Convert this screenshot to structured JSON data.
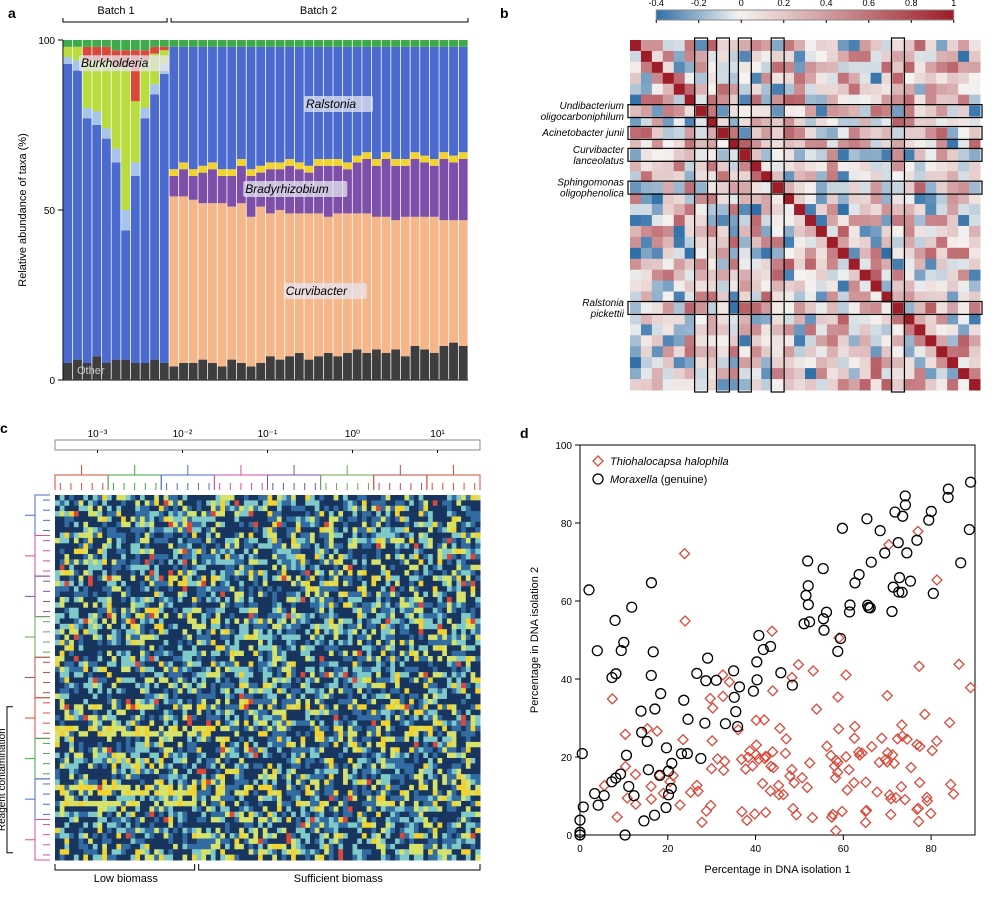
{
  "panels": {
    "a": "a",
    "b": "b",
    "c": "c",
    "d": "d"
  },
  "panel_a": {
    "type": "stacked-bar",
    "y_label": "Relative abundance of taxa (%)",
    "y_ticks": [
      0,
      50,
      100
    ],
    "batches": {
      "b1": "Batch 1",
      "b2": "Batch 2"
    },
    "taxa_labels": {
      "burkholderia": "Burkholderia",
      "ralstonia": "Ralstonia",
      "bradyrhizobium": "Bradyrhizobium",
      "curvibacter": "Curvibacter",
      "other": "Other"
    },
    "colors": {
      "other": "#3e3e3e",
      "curvibacter": "#f5b78a",
      "bradyrhizobium": "#7d4fa8",
      "ralstonia": "#4b6bd0",
      "burkholderia": "#b9dc3f",
      "red_taxa": "#d9483a",
      "green_taxa": "#3eaa49",
      "lightblue_taxa": "#a7c4ea",
      "yellow_taxa": "#f2d22e"
    },
    "n_batch1": 11,
    "n_batch2": 31,
    "batch1_stack": [
      {
        "other": 5,
        "ralstonia": 88,
        "lightblue": 2,
        "burkholderia": 3,
        "green": 2
      },
      {
        "other": 6,
        "ralstonia": 85,
        "lightblue": 3,
        "burkholderia": 4,
        "green": 2
      },
      {
        "other": 5,
        "ralstonia": 72,
        "lightblue": 3,
        "burkholderia": 14,
        "green": 2,
        "red": 4
      },
      {
        "other": 7,
        "ralstonia": 68,
        "lightblue": 4,
        "burkholderia": 15,
        "green": 2,
        "red": 4
      },
      {
        "other": 5,
        "ralstonia": 66,
        "lightblue": 3,
        "burkholderia": 20,
        "green": 2,
        "red": 4
      },
      {
        "other": 6,
        "ralstonia": 58,
        "lightblue": 4,
        "burkholderia": 24,
        "green": 3,
        "red": 5
      },
      {
        "other": 6,
        "ralstonia": 38,
        "lightblue": 6,
        "burkholderia": 42,
        "green": 3,
        "red": 5
      },
      {
        "other": 5,
        "ralstonia": 55,
        "lightblue": 4,
        "burkholderia": 18,
        "green": 3,
        "red": 15
      },
      {
        "other": 5,
        "ralstonia": 72,
        "lightblue": 3,
        "burkholderia": 14,
        "green": 3,
        "red": 3
      },
      {
        "other": 6,
        "ralstonia": 78,
        "lightblue": 3,
        "burkholderia": 9,
        "green": 2,
        "red": 2
      },
      {
        "other": 5,
        "ralstonia": 85,
        "lightblue": 3,
        "burkholderia": 4,
        "green": 2,
        "red": 1
      }
    ],
    "batch2_stack": [
      {
        "other": 4,
        "curvibacter": 50,
        "bradyrhizobium": 6,
        "yellow": 2,
        "ralstonia": 36,
        "green": 2
      },
      {
        "other": 5,
        "curvibacter": 49,
        "bradyrhizobium": 8,
        "yellow": 2,
        "ralstonia": 34,
        "green": 2
      },
      {
        "other": 5,
        "curvibacter": 48,
        "bradyrhizobium": 7,
        "yellow": 2,
        "ralstonia": 36,
        "green": 2
      },
      {
        "other": 6,
        "curvibacter": 46,
        "bradyrhizobium": 9,
        "yellow": 2,
        "ralstonia": 35,
        "green": 2
      },
      {
        "other": 5,
        "curvibacter": 47,
        "bradyrhizobium": 10,
        "yellow": 2,
        "ralstonia": 34,
        "green": 2
      },
      {
        "other": 4,
        "curvibacter": 48,
        "bradyrhizobium": 8,
        "yellow": 2,
        "ralstonia": 36,
        "green": 2
      },
      {
        "other": 6,
        "curvibacter": 45,
        "bradyrhizobium": 9,
        "yellow": 2,
        "ralstonia": 36,
        "green": 2
      },
      {
        "other": 5,
        "curvibacter": 47,
        "bradyrhizobium": 11,
        "yellow": 2,
        "ralstonia": 33,
        "green": 2
      },
      {
        "other": 4,
        "curvibacter": 44,
        "bradyrhizobium": 12,
        "yellow": 2,
        "ralstonia": 36,
        "green": 2
      },
      {
        "other": 5,
        "curvibacter": 46,
        "bradyrhizobium": 10,
        "yellow": 2,
        "ralstonia": 35,
        "green": 2
      },
      {
        "other": 7,
        "curvibacter": 42,
        "bradyrhizobium": 13,
        "yellow": 2,
        "ralstonia": 34,
        "green": 2
      },
      {
        "other": 6,
        "curvibacter": 44,
        "bradyrhizobium": 12,
        "yellow": 2,
        "ralstonia": 34,
        "green": 2
      },
      {
        "other": 7,
        "curvibacter": 42,
        "bradyrhizobium": 14,
        "yellow": 2,
        "ralstonia": 33,
        "green": 2
      },
      {
        "other": 8,
        "curvibacter": 41,
        "bradyrhizobium": 13,
        "yellow": 2,
        "ralstonia": 34,
        "green": 2
      },
      {
        "other": 6,
        "curvibacter": 43,
        "bradyrhizobium": 12,
        "yellow": 2,
        "ralstonia": 35,
        "green": 2
      },
      {
        "other": 7,
        "curvibacter": 42,
        "bradyrhizobium": 14,
        "yellow": 2,
        "ralstonia": 33,
        "green": 2
      },
      {
        "other": 8,
        "curvibacter": 40,
        "bradyrhizobium": 15,
        "yellow": 2,
        "ralstonia": 33,
        "green": 2
      },
      {
        "other": 7,
        "curvibacter": 42,
        "bradyrhizobium": 14,
        "yellow": 2,
        "ralstonia": 33,
        "green": 2
      },
      {
        "other": 8,
        "curvibacter": 41,
        "bradyrhizobium": 13,
        "yellow": 2,
        "ralstonia": 34,
        "green": 2
      },
      {
        "other": 9,
        "curvibacter": 40,
        "bradyrhizobium": 15,
        "yellow": 2,
        "ralstonia": 32,
        "green": 2
      },
      {
        "other": 8,
        "curvibacter": 41,
        "bradyrhizobium": 16,
        "yellow": 2,
        "ralstonia": 31,
        "green": 2
      },
      {
        "other": 9,
        "curvibacter": 39,
        "bradyrhizobium": 15,
        "yellow": 2,
        "ralstonia": 33,
        "green": 2
      },
      {
        "other": 8,
        "curvibacter": 40,
        "bradyrhizobium": 17,
        "yellow": 2,
        "ralstonia": 31,
        "green": 2
      },
      {
        "other": 9,
        "curvibacter": 38,
        "bradyrhizobium": 16,
        "yellow": 2,
        "ralstonia": 33,
        "green": 2
      },
      {
        "other": 7,
        "curvibacter": 41,
        "bradyrhizobium": 15,
        "yellow": 2,
        "ralstonia": 33,
        "green": 2
      },
      {
        "other": 10,
        "curvibacter": 38,
        "bradyrhizobium": 17,
        "yellow": 2,
        "ralstonia": 31,
        "green": 2
      },
      {
        "other": 9,
        "curvibacter": 39,
        "bradyrhizobium": 16,
        "yellow": 2,
        "ralstonia": 32,
        "green": 2
      },
      {
        "other": 8,
        "curvibacter": 40,
        "bradyrhizobium": 15,
        "yellow": 2,
        "ralstonia": 33,
        "green": 2
      },
      {
        "other": 10,
        "curvibacter": 37,
        "bradyrhizobium": 18,
        "yellow": 2,
        "ralstonia": 31,
        "green": 2
      },
      {
        "other": 11,
        "curvibacter": 36,
        "bradyrhizobium": 17,
        "yellow": 2,
        "ralstonia": 32,
        "green": 2
      },
      {
        "other": 10,
        "curvibacter": 37,
        "bradyrhizobium": 18,
        "yellow": 2,
        "ralstonia": 31,
        "green": 2
      }
    ],
    "plot_bg": "#ffffff",
    "axis_color": "#000000",
    "label_fontsize": 11
  },
  "panel_b": {
    "type": "heatmap",
    "color_scale": {
      "min": -0.4,
      "max": 1.0,
      "ticks": [
        -0.4,
        -0.2,
        0,
        0.2,
        0.4,
        0.6,
        0.8,
        1
      ]
    },
    "colors": {
      "low": "#2f6fa8",
      "mid": "#f5f3f0",
      "high": "#9e1c28"
    },
    "n": 32,
    "row_labels": [
      {
        "text1": "Undibacterium",
        "text2": "oligocarboniphilum",
        "row": 6
      },
      {
        "text1": "Acinetobacter junii",
        "text2": "",
        "row": 8
      },
      {
        "text1": "Curvibacter",
        "text2": "lanceolatus",
        "row": 10
      },
      {
        "text1": "Sphingomonas",
        "text2": "oligophenolica",
        "row": 13
      },
      {
        "text1": "Ralstonia",
        "text2": "pickettii",
        "row": 24
      }
    ],
    "highlighted_rows": [
      6,
      8,
      10,
      13,
      24
    ],
    "seed": 321
  },
  "panel_c": {
    "type": "heatmap-dendro",
    "top_scale_ticks": [
      "10⁻³",
      "10⁻²",
      "10⁻¹",
      "10⁰",
      "10¹"
    ],
    "bottom_labels": {
      "low": "Low biomass",
      "suff": "Sufficient biomass"
    },
    "side_label": "Reagent contamination",
    "colors": {
      "bg": "#18355f",
      "low": "#18355f",
      "mid1": "#326ca2",
      "mid2": "#7fc9c9",
      "mid3": "#d6e26a",
      "high": "#f2d22e",
      "hot": "#d9483a"
    },
    "dendro_colors": [
      "#d9483a",
      "#3eaa49",
      "#4b6bd0",
      "#d64fa2",
      "#7d4fa8",
      "#6aa84f",
      "#c04848"
    ],
    "n_cols": 90,
    "n_rows": 68,
    "split_col": 30,
    "seed": 47
  },
  "panel_d": {
    "type": "scatter",
    "x_label": "Percentage in DNA isolation 1",
    "y_label": "Percentage in DNA isolation 2",
    "x_ticks": [
      0,
      20,
      40,
      60,
      80
    ],
    "y_ticks": [
      0,
      20,
      40,
      60,
      80,
      100
    ],
    "legend": {
      "thiohalocapsa": "Thiohalocapsa halophila",
      "moraxella": "Moraxella (genuine)"
    },
    "marker_colors": {
      "thiohalocapsa": "#d9483a",
      "moraxella": "#000000"
    },
    "marker": {
      "thio_shape": "diamond",
      "mora_shape": "circle",
      "size": 9,
      "stroke": 1.3
    },
    "seed": 99,
    "n_thio": 150,
    "n_mora": 110
  }
}
